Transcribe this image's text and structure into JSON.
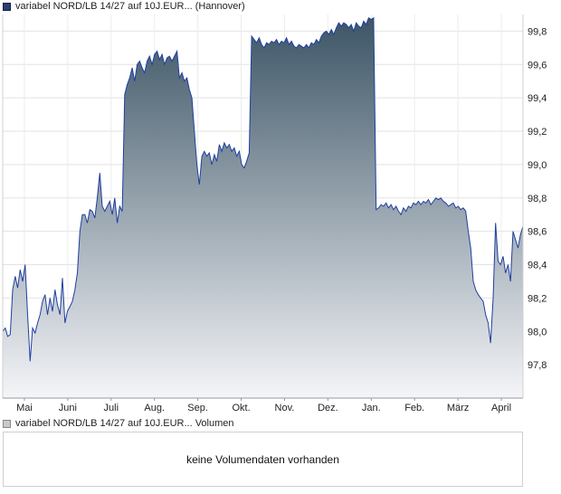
{
  "legend": {
    "price_label": "variabel NORD/LB 14/27 auf 10J.EUR... (Hannover)",
    "volume_label": "variabel NORD/LB 14/27 auf 10J.EUR... Volumen",
    "price_color": "#2b3f73",
    "volume_color": "#c9c9c9"
  },
  "volume_panel": {
    "message": "keine Volumendaten vorhanden"
  },
  "chart_data": {
    "type": "area",
    "title": "",
    "xlabel": "",
    "ylabel": "",
    "x_ticks": [
      "Mai",
      "Juni",
      "Juli",
      "Aug.",
      "Sep.",
      "Okt.",
      "Nov.",
      "Dez.",
      "Jan.",
      "Feb.",
      "März",
      "April"
    ],
    "y_ticks": [
      "99,8",
      "99,6",
      "99,4",
      "99,2",
      "99,0",
      "98,8",
      "98,6",
      "98,4",
      "98,2",
      "98,0",
      "97,8"
    ],
    "ylim": [
      97.6,
      99.9
    ],
    "grid": true,
    "gradient": {
      "top": "#3d5566",
      "bottom": "#f4f5f8"
    },
    "line_color": "#1f3fa0",
    "series": [
      {
        "values": [
          [
            0,
            98.0
          ],
          [
            1,
            98.02
          ],
          [
            2,
            97.97
          ],
          [
            3,
            97.98
          ],
          [
            4,
            98.25
          ],
          [
            5,
            98.33
          ],
          [
            6,
            98.26
          ],
          [
            7,
            98.37
          ],
          [
            8,
            98.3
          ],
          [
            9,
            98.4
          ],
          [
            10,
            98.1
          ],
          [
            11,
            97.82
          ],
          [
            12,
            98.02
          ],
          [
            13,
            97.99
          ],
          [
            14,
            98.05
          ],
          [
            15,
            98.1
          ],
          [
            16,
            98.18
          ],
          [
            17,
            98.22
          ],
          [
            18,
            98.1
          ],
          [
            19,
            98.2
          ],
          [
            20,
            98.12
          ],
          [
            21,
            98.25
          ],
          [
            22,
            98.16
          ],
          [
            23,
            98.1
          ],
          [
            24,
            98.32
          ],
          [
            25,
            98.05
          ],
          [
            26,
            98.12
          ],
          [
            27,
            98.15
          ],
          [
            28,
            98.18
          ],
          [
            29,
            98.25
          ],
          [
            30,
            98.35
          ],
          [
            31,
            98.6
          ],
          [
            32,
            98.7
          ],
          [
            33,
            98.7
          ],
          [
            34,
            98.65
          ],
          [
            35,
            98.73
          ],
          [
            36,
            98.72
          ],
          [
            37,
            98.68
          ],
          [
            38,
            98.8
          ],
          [
            39,
            98.95
          ],
          [
            40,
            98.75
          ],
          [
            41,
            98.72
          ],
          [
            42,
            98.75
          ],
          [
            43,
            98.78
          ],
          [
            44,
            98.7
          ],
          [
            45,
            98.8
          ],
          [
            46,
            98.65
          ],
          [
            47,
            98.75
          ],
          [
            48,
            98.72
          ],
          [
            49,
            99.42
          ],
          [
            50,
            99.48
          ],
          [
            51,
            99.52
          ],
          [
            52,
            99.58
          ],
          [
            53,
            99.5
          ],
          [
            54,
            99.6
          ],
          [
            55,
            99.62
          ],
          [
            56,
            99.58
          ],
          [
            57,
            99.55
          ],
          [
            58,
            99.62
          ],
          [
            59,
            99.65
          ],
          [
            60,
            99.6
          ],
          [
            61,
            99.66
          ],
          [
            62,
            99.68
          ],
          [
            63,
            99.63
          ],
          [
            64,
            99.66
          ],
          [
            65,
            99.6
          ],
          [
            66,
            99.64
          ],
          [
            67,
            99.65
          ],
          [
            68,
            99.62
          ],
          [
            69,
            99.65
          ],
          [
            70,
            99.68
          ],
          [
            71,
            99.52
          ],
          [
            72,
            99.55
          ],
          [
            73,
            99.5
          ],
          [
            74,
            99.52
          ],
          [
            75,
            99.45
          ],
          [
            76,
            99.4
          ],
          [
            77,
            99.2
          ],
          [
            78,
            99.0
          ],
          [
            79,
            98.88
          ],
          [
            80,
            99.05
          ],
          [
            81,
            99.08
          ],
          [
            82,
            99.05
          ],
          [
            83,
            99.07
          ],
          [
            84,
            99.0
          ],
          [
            85,
            99.06
          ],
          [
            86,
            99.02
          ],
          [
            87,
            99.12
          ],
          [
            88,
            99.08
          ],
          [
            89,
            99.13
          ],
          [
            90,
            99.1
          ],
          [
            91,
            99.12
          ],
          [
            92,
            99.08
          ],
          [
            93,
            99.1
          ],
          [
            94,
            99.05
          ],
          [
            95,
            99.08
          ],
          [
            96,
            99.0
          ],
          [
            97,
            98.98
          ],
          [
            98,
            99.02
          ],
          [
            99,
            99.07
          ],
          [
            100,
            99.77
          ],
          [
            101,
            99.75
          ],
          [
            102,
            99.73
          ],
          [
            103,
            99.76
          ],
          [
            104,
            99.72
          ],
          [
            105,
            99.7
          ],
          [
            106,
            99.73
          ],
          [
            107,
            99.72
          ],
          [
            108,
            99.74
          ],
          [
            109,
            99.73
          ],
          [
            110,
            99.75
          ],
          [
            111,
            99.72
          ],
          [
            112,
            99.74
          ],
          [
            113,
            99.73
          ],
          [
            114,
            99.76
          ],
          [
            115,
            99.72
          ],
          [
            116,
            99.74
          ],
          [
            117,
            99.71
          ],
          [
            118,
            99.7
          ],
          [
            119,
            99.72
          ],
          [
            120,
            99.71
          ],
          [
            121,
            99.7
          ],
          [
            122,
            99.72
          ],
          [
            123,
            99.7
          ],
          [
            124,
            99.73
          ],
          [
            125,
            99.72
          ],
          [
            126,
            99.75
          ],
          [
            127,
            99.73
          ],
          [
            128,
            99.77
          ],
          [
            129,
            99.79
          ],
          [
            130,
            99.8
          ],
          [
            131,
            99.78
          ],
          [
            132,
            99.81
          ],
          [
            133,
            99.78
          ],
          [
            134,
            99.82
          ],
          [
            135,
            99.85
          ],
          [
            136,
            99.83
          ],
          [
            137,
            99.85
          ],
          [
            138,
            99.84
          ],
          [
            139,
            99.82
          ],
          [
            140,
            99.84
          ],
          [
            141,
            99.8
          ],
          [
            142,
            99.85
          ],
          [
            143,
            99.83
          ],
          [
            144,
            99.82
          ],
          [
            145,
            99.86
          ],
          [
            146,
            99.84
          ],
          [
            147,
            99.88
          ],
          [
            148,
            99.87
          ],
          [
            149,
            99.88
          ],
          [
            150,
            98.73
          ],
          [
            151,
            98.74
          ],
          [
            152,
            98.76
          ],
          [
            153,
            98.75
          ],
          [
            154,
            98.77
          ],
          [
            155,
            98.74
          ],
          [
            156,
            98.76
          ],
          [
            157,
            98.73
          ],
          [
            158,
            98.75
          ],
          [
            159,
            98.72
          ],
          [
            160,
            98.7
          ],
          [
            161,
            98.74
          ],
          [
            162,
            98.72
          ],
          [
            163,
            98.75
          ],
          [
            164,
            98.74
          ],
          [
            165,
            98.77
          ],
          [
            166,
            98.76
          ],
          [
            167,
            98.78
          ],
          [
            168,
            98.76
          ],
          [
            169,
            98.78
          ],
          [
            170,
            98.77
          ],
          [
            171,
            98.79
          ],
          [
            172,
            98.76
          ],
          [
            173,
            98.78
          ],
          [
            174,
            98.8
          ],
          [
            175,
            98.79
          ],
          [
            176,
            98.8
          ],
          [
            177,
            98.78
          ],
          [
            178,
            98.77
          ],
          [
            179,
            98.75
          ],
          [
            180,
            98.76
          ],
          [
            181,
            98.77
          ],
          [
            182,
            98.74
          ],
          [
            183,
            98.75
          ],
          [
            184,
            98.73
          ],
          [
            185,
            98.74
          ],
          [
            186,
            98.72
          ],
          [
            187,
            98.6
          ],
          [
            188,
            98.5
          ],
          [
            189,
            98.3
          ],
          [
            190,
            98.25
          ],
          [
            191,
            98.22
          ],
          [
            192,
            98.2
          ],
          [
            193,
            98.18
          ],
          [
            194,
            98.1
          ],
          [
            195,
            98.05
          ],
          [
            196,
            97.93
          ],
          [
            197,
            98.2
          ],
          [
            198,
            98.65
          ],
          [
            199,
            98.42
          ],
          [
            200,
            98.4
          ],
          [
            201,
            98.45
          ],
          [
            202,
            98.35
          ],
          [
            203,
            98.4
          ],
          [
            204,
            98.3
          ],
          [
            205,
            98.6
          ],
          [
            206,
            98.55
          ],
          [
            207,
            98.5
          ],
          [
            208,
            98.58
          ],
          [
            209,
            98.63
          ]
        ]
      }
    ]
  }
}
